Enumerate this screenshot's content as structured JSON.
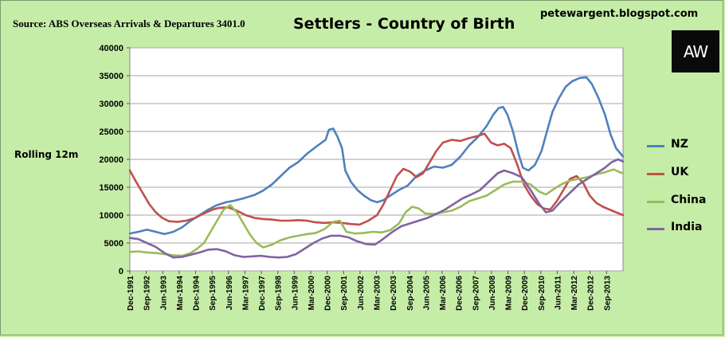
{
  "header": {
    "source": "Source: ABS Overseas Arrivals & Departures 3401.0",
    "title": "Settlers - Country of Birth",
    "blog": "petewargent.blogspot.com",
    "logo_text": "AW",
    "side_label": "Rolling 12m"
  },
  "chart_data": {
    "type": "line",
    "title": "Settlers - Country of Birth",
    "xlabel": "",
    "ylabel": "Rolling 12m",
    "ylim": [
      0,
      40000
    ],
    "yticks": [
      0,
      5000,
      10000,
      15000,
      20000,
      25000,
      30000,
      35000,
      40000
    ],
    "ytick_labels": [
      "0",
      "5000",
      "10000",
      "15000",
      "20000",
      "25000",
      "30000",
      "35000",
      "40000"
    ],
    "xlim": [
      1991.92,
      2014.42
    ],
    "xtick_labels": [
      "Dec-1991",
      "Sep-1992",
      "Jun-1993",
      "Mar-1994",
      "Dec-1994",
      "Sep-1995",
      "Jun-1996",
      "Mar-1997",
      "Dec-1997",
      "Sep-1998",
      "Jun-1999",
      "Mar-2000",
      "Dec-2000",
      "Sep-2001",
      "Jun-2002",
      "Mar-2003",
      "Dec-2003",
      "Sep-2004",
      "Jun-2005",
      "Mar-2006",
      "Dec-2006",
      "Sep-2007",
      "Jun-2008",
      "Mar-2009",
      "Dec-2009",
      "Sep-2010",
      "Jun-2011",
      "Mar-2012",
      "Dec-2012",
      "Sep-2013"
    ],
    "xtick_positions": [
      1991.92,
      1992.67,
      1993.42,
      1994.17,
      1994.92,
      1995.67,
      1996.42,
      1997.17,
      1997.92,
      1998.67,
      1999.42,
      2000.17,
      2000.92,
      2001.67,
      2002.42,
      2003.17,
      2003.92,
      2004.67,
      2005.42,
      2006.17,
      2006.92,
      2007.67,
      2008.42,
      2009.17,
      2009.92,
      2010.67,
      2011.42,
      2012.17,
      2012.92,
      2013.67
    ],
    "grid": "horizontal",
    "legend": "right",
    "series": [
      {
        "name": "NZ",
        "color": "#4f81bd",
        "points": [
          [
            1991.92,
            6700
          ],
          [
            1992.3,
            7000
          ],
          [
            1992.7,
            7400
          ],
          [
            1993.1,
            7000
          ],
          [
            1993.5,
            6600
          ],
          [
            1993.9,
            7000
          ],
          [
            1994.3,
            7800
          ],
          [
            1994.7,
            9000
          ],
          [
            1995.1,
            10000
          ],
          [
            1995.5,
            11000
          ],
          [
            1995.9,
            11800
          ],
          [
            1996.3,
            12300
          ],
          [
            1996.7,
            12600
          ],
          [
            1997.1,
            13000
          ],
          [
            1997.6,
            13600
          ],
          [
            1998.0,
            14400
          ],
          [
            1998.4,
            15500
          ],
          [
            1998.8,
            17000
          ],
          [
            1999.2,
            18500
          ],
          [
            1999.6,
            19500
          ],
          [
            2000.0,
            21000
          ],
          [
            2000.5,
            22500
          ],
          [
            2000.85,
            23500
          ],
          [
            2001.0,
            25300
          ],
          [
            2001.2,
            25500
          ],
          [
            2001.4,
            24000
          ],
          [
            2001.6,
            22000
          ],
          [
            2001.75,
            18000
          ],
          [
            2002.0,
            16000
          ],
          [
            2002.3,
            14500
          ],
          [
            2002.6,
            13500
          ],
          [
            2002.9,
            12700
          ],
          [
            2003.2,
            12300
          ],
          [
            2003.5,
            12700
          ],
          [
            2003.8,
            13500
          ],
          [
            2004.2,
            14500
          ],
          [
            2004.6,
            15300
          ],
          [
            2005.0,
            17000
          ],
          [
            2005.4,
            18000
          ],
          [
            2005.8,
            18700
          ],
          [
            2006.2,
            18500
          ],
          [
            2006.6,
            19000
          ],
          [
            2007.0,
            20500
          ],
          [
            2007.4,
            22500
          ],
          [
            2007.8,
            24000
          ],
          [
            2008.2,
            26000
          ],
          [
            2008.5,
            28000
          ],
          [
            2008.75,
            29200
          ],
          [
            2008.95,
            29400
          ],
          [
            2009.15,
            28000
          ],
          [
            2009.4,
            25000
          ],
          [
            2009.65,
            21000
          ],
          [
            2009.85,
            18500
          ],
          [
            2010.1,
            18000
          ],
          [
            2010.4,
            19000
          ],
          [
            2010.7,
            21500
          ],
          [
            2010.95,
            25000
          ],
          [
            2011.2,
            28500
          ],
          [
            2011.5,
            31000
          ],
          [
            2011.8,
            33000
          ],
          [
            2012.1,
            34000
          ],
          [
            2012.45,
            34600
          ],
          [
            2012.75,
            34700
          ],
          [
            2013.0,
            33500
          ],
          [
            2013.3,
            31000
          ],
          [
            2013.6,
            28000
          ],
          [
            2013.85,
            24500
          ],
          [
            2014.1,
            22000
          ],
          [
            2014.42,
            20500
          ]
        ]
      },
      {
        "name": "UK",
        "color": "#c0504d",
        "points": [
          [
            1991.92,
            18000
          ],
          [
            1992.2,
            16000
          ],
          [
            1992.5,
            14000
          ],
          [
            1992.8,
            12000
          ],
          [
            1993.1,
            10500
          ],
          [
            1993.4,
            9500
          ],
          [
            1993.7,
            8900
          ],
          [
            1994.1,
            8800
          ],
          [
            1994.5,
            9000
          ],
          [
            1994.9,
            9500
          ],
          [
            1995.3,
            10300
          ],
          [
            1995.7,
            11000
          ],
          [
            1996.0,
            11300
          ],
          [
            1996.4,
            11400
          ],
          [
            1996.8,
            10800
          ],
          [
            1997.2,
            10000
          ],
          [
            1997.6,
            9500
          ],
          [
            1998.0,
            9300
          ],
          [
            1998.4,
            9200
          ],
          [
            1998.8,
            9000
          ],
          [
            1999.2,
            9000
          ],
          [
            1999.6,
            9100
          ],
          [
            2000.0,
            9000
          ],
          [
            2000.4,
            8700
          ],
          [
            2000.8,
            8600
          ],
          [
            2001.2,
            8700
          ],
          [
            2001.6,
            8600
          ],
          [
            2002.0,
            8400
          ],
          [
            2002.4,
            8300
          ],
          [
            2002.8,
            9000
          ],
          [
            2003.2,
            10000
          ],
          [
            2003.5,
            12000
          ],
          [
            2003.8,
            14500
          ],
          [
            2004.1,
            17000
          ],
          [
            2004.4,
            18300
          ],
          [
            2004.7,
            17800
          ],
          [
            2005.0,
            16800
          ],
          [
            2005.3,
            17500
          ],
          [
            2005.6,
            19500
          ],
          [
            2005.9,
            21500
          ],
          [
            2006.2,
            23000
          ],
          [
            2006.6,
            23500
          ],
          [
            2007.0,
            23300
          ],
          [
            2007.4,
            23800
          ],
          [
            2007.8,
            24200
          ],
          [
            2008.1,
            24600
          ],
          [
            2008.4,
            23000
          ],
          [
            2008.7,
            22500
          ],
          [
            2009.0,
            22800
          ],
          [
            2009.3,
            22000
          ],
          [
            2009.6,
            19000
          ],
          [
            2009.9,
            15500
          ],
          [
            2010.2,
            13500
          ],
          [
            2010.5,
            12000
          ],
          [
            2010.8,
            11200
          ],
          [
            2011.1,
            11000
          ],
          [
            2011.4,
            12500
          ],
          [
            2011.7,
            14500
          ],
          [
            2012.0,
            16500
          ],
          [
            2012.3,
            17000
          ],
          [
            2012.6,
            15800
          ],
          [
            2012.9,
            13500
          ],
          [
            2013.2,
            12200
          ],
          [
            2013.5,
            11500
          ],
          [
            2013.8,
            11000
          ],
          [
            2014.1,
            10500
          ],
          [
            2014.42,
            10000
          ]
        ]
      },
      {
        "name": "China",
        "color": "#9bbb59",
        "points": [
          [
            1991.92,
            3400
          ],
          [
            1992.3,
            3500
          ],
          [
            1992.7,
            3300
          ],
          [
            1993.1,
            3200
          ],
          [
            1993.5,
            3000
          ],
          [
            1993.9,
            2800
          ],
          [
            1994.3,
            2700
          ],
          [
            1994.7,
            3200
          ],
          [
            1995.0,
            4000
          ],
          [
            1995.3,
            5000
          ],
          [
            1995.6,
            7000
          ],
          [
            1995.9,
            9000
          ],
          [
            1996.2,
            11000
          ],
          [
            1996.5,
            11800
          ],
          [
            1996.8,
            10500
          ],
          [
            1997.1,
            8500
          ],
          [
            1997.4,
            6500
          ],
          [
            1997.7,
            5000
          ],
          [
            1998.0,
            4200
          ],
          [
            1998.4,
            4700
          ],
          [
            1998.8,
            5500
          ],
          [
            1999.2,
            6000
          ],
          [
            1999.6,
            6300
          ],
          [
            2000.0,
            6600
          ],
          [
            2000.4,
            6800
          ],
          [
            2000.8,
            7500
          ],
          [
            2001.2,
            8800
          ],
          [
            2001.5,
            9000
          ],
          [
            2001.8,
            7000
          ],
          [
            2002.2,
            6700
          ],
          [
            2002.6,
            6800
          ],
          [
            2003.0,
            7000
          ],
          [
            2003.4,
            6900
          ],
          [
            2003.8,
            7300
          ],
          [
            2004.2,
            8500
          ],
          [
            2004.5,
            10500
          ],
          [
            2004.8,
            11500
          ],
          [
            2005.1,
            11200
          ],
          [
            2005.4,
            10300
          ],
          [
            2005.8,
            10200
          ],
          [
            2006.2,
            10500
          ],
          [
            2006.6,
            10800
          ],
          [
            2007.0,
            11500
          ],
          [
            2007.4,
            12500
          ],
          [
            2007.8,
            13000
          ],
          [
            2008.2,
            13500
          ],
          [
            2008.6,
            14500
          ],
          [
            2009.0,
            15500
          ],
          [
            2009.4,
            16000
          ],
          [
            2009.8,
            16000
          ],
          [
            2010.2,
            15500
          ],
          [
            2010.6,
            14200
          ],
          [
            2010.9,
            13700
          ],
          [
            2011.2,
            14500
          ],
          [
            2011.6,
            15500
          ],
          [
            2012.0,
            16200
          ],
          [
            2012.4,
            16500
          ],
          [
            2012.8,
            16800
          ],
          [
            2013.2,
            17300
          ],
          [
            2013.6,
            17700
          ],
          [
            2014.0,
            18200
          ],
          [
            2014.2,
            17800
          ],
          [
            2014.42,
            17500
          ]
        ]
      },
      {
        "name": "India",
        "color": "#8064a2",
        "points": [
          [
            1991.92,
            5900
          ],
          [
            1992.3,
            5700
          ],
          [
            1992.7,
            5000
          ],
          [
            1993.1,
            4300
          ],
          [
            1993.5,
            3200
          ],
          [
            1993.9,
            2400
          ],
          [
            1994.3,
            2500
          ],
          [
            1994.7,
            2900
          ],
          [
            1995.1,
            3300
          ],
          [
            1995.5,
            3800
          ],
          [
            1995.9,
            3900
          ],
          [
            1996.3,
            3500
          ],
          [
            1996.7,
            2800
          ],
          [
            1997.1,
            2500
          ],
          [
            1997.5,
            2600
          ],
          [
            1997.9,
            2700
          ],
          [
            1998.3,
            2500
          ],
          [
            1998.7,
            2400
          ],
          [
            1999.1,
            2500
          ],
          [
            1999.5,
            3000
          ],
          [
            1999.9,
            4000
          ],
          [
            2000.3,
            5000
          ],
          [
            2000.7,
            5800
          ],
          [
            2001.1,
            6300
          ],
          [
            2001.5,
            6300
          ],
          [
            2001.9,
            6000
          ],
          [
            2002.3,
            5300
          ],
          [
            2002.7,
            4800
          ],
          [
            2003.1,
            4700
          ],
          [
            2003.5,
            5800
          ],
          [
            2003.9,
            7000
          ],
          [
            2004.3,
            8000
          ],
          [
            2004.7,
            8500
          ],
          [
            2005.1,
            9000
          ],
          [
            2005.5,
            9500
          ],
          [
            2005.9,
            10200
          ],
          [
            2006.3,
            11000
          ],
          [
            2006.7,
            12000
          ],
          [
            2007.1,
            13000
          ],
          [
            2007.5,
            13700
          ],
          [
            2007.9,
            14500
          ],
          [
            2008.3,
            16000
          ],
          [
            2008.7,
            17500
          ],
          [
            2009.0,
            18000
          ],
          [
            2009.4,
            17500
          ],
          [
            2009.8,
            16800
          ],
          [
            2010.2,
            14500
          ],
          [
            2010.6,
            12000
          ],
          [
            2010.9,
            10500
          ],
          [
            2011.2,
            10800
          ],
          [
            2011.6,
            12500
          ],
          [
            2012.0,
            14000
          ],
          [
            2012.4,
            15500
          ],
          [
            2012.8,
            16500
          ],
          [
            2013.2,
            17500
          ],
          [
            2013.6,
            18500
          ],
          [
            2013.9,
            19500
          ],
          [
            2014.2,
            20000
          ],
          [
            2014.42,
            19600
          ]
        ]
      }
    ]
  }
}
